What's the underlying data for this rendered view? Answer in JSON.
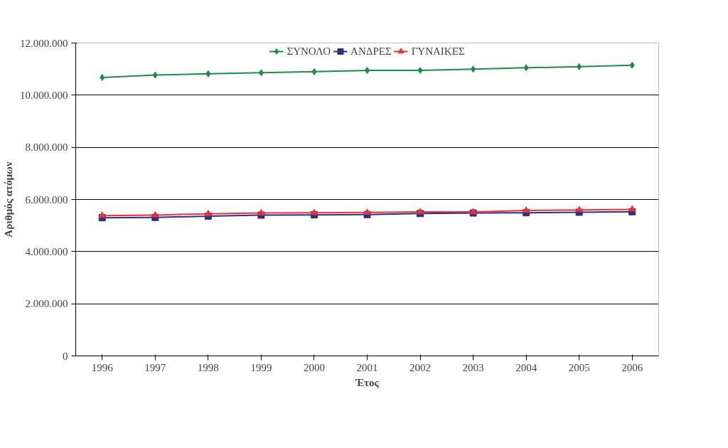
{
  "chart_data": {
    "type": "line",
    "xlabel": "Έτος",
    "ylabel": "Αριθμός ατόμων",
    "categories": [
      "1996",
      "1997",
      "1998",
      "1999",
      "2000",
      "2001",
      "2002",
      "2003",
      "2004",
      "2005",
      "2006"
    ],
    "series": [
      {
        "name": "ΣΥΝΟΛΟ",
        "color": "#1e8c46",
        "marker": "diamond",
        "values": [
          10680000,
          10770000,
          10820000,
          10860000,
          10900000,
          10950000,
          10950000,
          11000000,
          11050000,
          11090000,
          11150000
        ]
      },
      {
        "name": "ΑΝΔΡΕΣ",
        "color": "#2e2e8a",
        "marker": "square",
        "values": [
          5300000,
          5310000,
          5360000,
          5400000,
          5410000,
          5420000,
          5460000,
          5480000,
          5490000,
          5510000,
          5530000
        ]
      },
      {
        "name": "ΓΥΝΑΙΚΕΣ",
        "color": "#e8333a",
        "marker": "triangle",
        "values": [
          5380000,
          5400000,
          5450000,
          5480000,
          5490000,
          5500000,
          5520000,
          5520000,
          5580000,
          5600000,
          5620000
        ]
      }
    ],
    "ylim": [
      0,
      12000000
    ],
    "yticks": [
      {
        "value": 0,
        "label": "0"
      },
      {
        "value": 2000000,
        "label": "2.000.000"
      },
      {
        "value": 4000000,
        "label": "4.000.000"
      },
      {
        "value": 6000000,
        "label": "6.000.000"
      },
      {
        "value": 8000000,
        "label": "8.000.000"
      },
      {
        "value": 10000000,
        "label": "10.000.000"
      },
      {
        "value": 12000000,
        "label": "12.000.000"
      }
    ],
    "grid": "y",
    "legend": "top",
    "line_style": "solid"
  }
}
